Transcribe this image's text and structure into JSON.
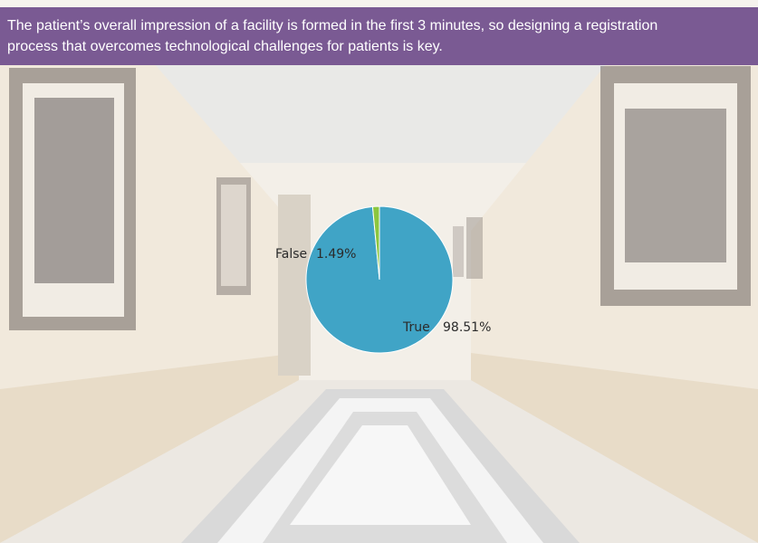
{
  "banner": {
    "text": "The patient’s overall impression of a facility is formed in the first 3 minutes, so designing a registration process that overcomes technological challenges for patients is key."
  },
  "colors": {
    "banner": "#7a5a93",
    "true_slice": "#40a4c6",
    "false_slice": "#8cc63f"
  },
  "chart_data": {
    "type": "pie",
    "title": "",
    "series": [
      {
        "label": "True",
        "value": 98.51,
        "display": "98.51%",
        "color": "#40a4c6"
      },
      {
        "label": "False",
        "value": 1.49,
        "display": "1.49%",
        "color": "#8cc63f"
      }
    ]
  }
}
